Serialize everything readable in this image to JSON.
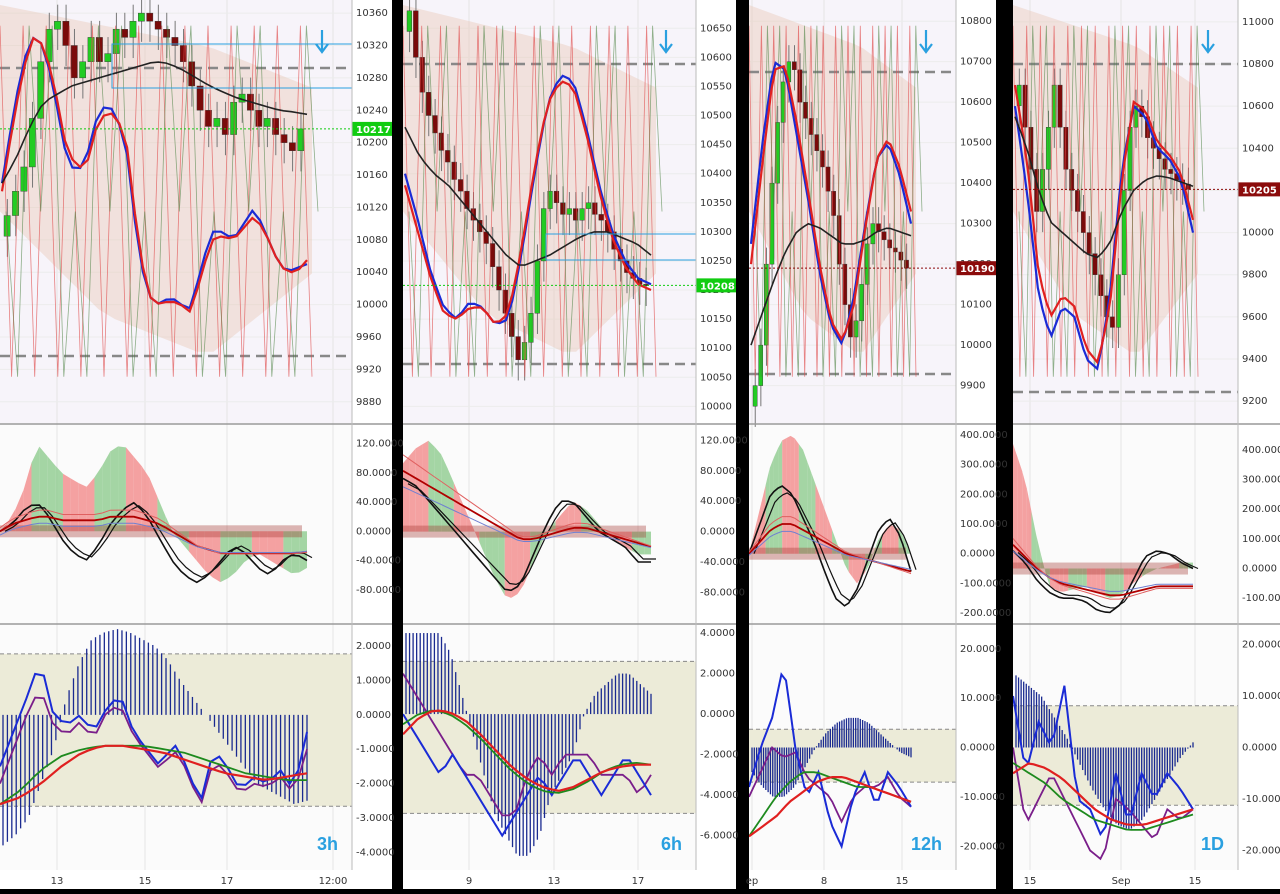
{
  "chart_data": [
    {
      "type": "candlestick",
      "timeframe": "3h",
      "price_axis_ticks": [
        10360,
        10320,
        10280,
        10240,
        10200,
        10160,
        10120,
        10080,
        10040,
        10000,
        9960,
        9920,
        9880
      ],
      "price_ylim": [
        9860,
        10370
      ],
      "last_price": "10217",
      "osc_axis_ticks": [
        "120.0000",
        "80.0000",
        "40.0000",
        "0.0000",
        "-40.0000",
        "-80.0000"
      ],
      "osc_ylim": [
        -120,
        140
      ],
      "macd_axis_ticks": [
        "2.0000",
        "1.0000",
        "0.0000",
        "-1.0000",
        "-2.0000",
        "-3.0000",
        "-4.0000"
      ],
      "macd_ylim": [
        -4.4,
        2.5
      ],
      "time_labels": [
        "13",
        "15",
        "17",
        "12:00"
      ],
      "closes": [
        10110,
        10140,
        10170,
        10230,
        10300,
        10340,
        10350,
        10320,
        10280,
        10300,
        10330,
        10300,
        10310,
        10340,
        10330,
        10350,
        10360,
        10350,
        10340,
        10330,
        10320,
        10300,
        10270,
        10240,
        10220,
        10230,
        10210,
        10250,
        10260,
        10240,
        10220,
        10230,
        10210,
        10200,
        10190,
        10217
      ],
      "series": [
        {
          "name": "",
          "color": "#1a2bd6",
          "values": [
            10150,
            10230,
            10300,
            10330,
            10320,
            10260,
            10190,
            10160,
            10180,
            10230,
            10250,
            10230,
            10180,
            10060,
            10010,
            10000,
            10010,
            10000,
            9995,
            10050,
            10090,
            10090,
            10080,
            10100,
            10120,
            10090,
            10060,
            10040,
            10045,
            10050
          ]
        },
        {
          "name": "",
          "color": "#e02020",
          "values": [
            10140,
            10220,
            10290,
            10330,
            10320,
            10270,
            10200,
            10170,
            10170,
            10220,
            10240,
            10230,
            10190,
            10070,
            10010,
            10000,
            10005,
            10000,
            9990,
            10040,
            10080,
            10085,
            10080,
            10095,
            10110,
            10090,
            10060,
            10040,
            10040,
            10055
          ]
        },
        {
          "name": "",
          "color": "#222222",
          "values": [
            10150,
            10180,
            10220,
            10250,
            10260,
            10270,
            10275,
            10280,
            10285,
            10290,
            10295,
            10300,
            10298,
            10290,
            10280,
            10270,
            10262,
            10255,
            10250,
            10245,
            10240,
            10238,
            10235
          ]
        }
      ]
    },
    {
      "type": "candlestick",
      "timeframe": "6h",
      "price_axis_ticks": [
        10650,
        10600,
        10550,
        10500,
        10450,
        10400,
        10350,
        10300,
        10250,
        10200,
        10150,
        10100,
        10050,
        10000
      ],
      "price_ylim": [
        9980,
        10690
      ],
      "last_price": "10208",
      "osc_axis_ticks": [
        "120.0000",
        "80.0000",
        "40.0000",
        "0.0000",
        "-40.0000",
        "-80.0000"
      ],
      "osc_ylim": [
        -115,
        135
      ],
      "macd_axis_ticks": [
        "4.0000",
        "2.0000",
        "0.0000",
        "-2.0000",
        "-4.0000",
        "-6.0000"
      ],
      "macd_ylim": [
        -7.5,
        4.2
      ],
      "time_labels": [
        "9",
        "13",
        "17"
      ],
      "closes": [
        10680,
        10600,
        10540,
        10500,
        10470,
        10440,
        10420,
        10390,
        10370,
        10340,
        10320,
        10300,
        10280,
        10240,
        10200,
        10160,
        10120,
        10080,
        10110,
        10160,
        10250,
        10340,
        10370,
        10350,
        10330,
        10340,
        10320,
        10340,
        10350,
        10330,
        10320,
        10300,
        10270,
        10250,
        10230,
        10220,
        10210,
        10208
      ],
      "series": [
        {
          "name": "",
          "color": "#1a2bd6",
          "values": [
            10400,
            10320,
            10230,
            10170,
            10150,
            10180,
            10170,
            10140,
            10150,
            10260,
            10400,
            10520,
            10570,
            10560,
            10480,
            10380,
            10300,
            10250,
            10220,
            10210
          ]
        },
        {
          "name": "",
          "color": "#e02020",
          "values": [
            10380,
            10300,
            10220,
            10160,
            10150,
            10170,
            10170,
            10140,
            10160,
            10270,
            10410,
            10520,
            10560,
            10550,
            10470,
            10370,
            10290,
            10240,
            10210,
            10200
          ]
        },
        {
          "name": "",
          "color": "#222222",
          "values": [
            10480,
            10430,
            10400,
            10380,
            10350,
            10320,
            10290,
            10260,
            10240,
            10250,
            10260,
            10275,
            10290,
            10300,
            10300,
            10290,
            10280,
            10260
          ]
        }
      ]
    },
    {
      "type": "candlestick",
      "timeframe": "12h",
      "price_axis_ticks": [
        10800,
        10700,
        10600,
        10500,
        10400,
        10300,
        10200,
        10100,
        10000,
        9900
      ],
      "price_ylim": [
        9820,
        10840
      ],
      "last_price": "10190",
      "osc_axis_ticks": [
        "400.0000",
        "300.0000",
        "200.0000",
        "100.0000",
        "0.0000",
        "-100.0000",
        "-200.0000"
      ],
      "osc_ylim": [
        -220,
        420
      ],
      "macd_axis_ticks": [
        "20.0000",
        "10.0000",
        "0.0000",
        "-10.0000",
        "-20.0000"
      ],
      "macd_ylim": [
        -24,
        24
      ],
      "time_labels": [
        "ep",
        "8",
        "15"
      ],
      "closes": [
        9900,
        10000,
        10200,
        10400,
        10550,
        10650,
        10700,
        10680,
        10600,
        10560,
        10520,
        10480,
        10440,
        10380,
        10320,
        10200,
        10100,
        10020,
        10060,
        10150,
        10250,
        10300,
        10280,
        10260,
        10240,
        10230,
        10210,
        10190
      ],
      "series": [
        {
          "name": "",
          "color": "#1a2bd6",
          "values": [
            10250,
            10500,
            10700,
            10680,
            10520,
            10360,
            10180,
            10050,
            10000,
            10120,
            10300,
            10460,
            10500,
            10420,
            10300
          ]
        },
        {
          "name": "",
          "color": "#e02020",
          "values": [
            10200,
            10450,
            10680,
            10690,
            10550,
            10380,
            10200,
            10060,
            10010,
            10100,
            10290,
            10460,
            10510,
            10440,
            10330
          ]
        },
        {
          "name": "",
          "color": "#222222",
          "values": [
            10000,
            10080,
            10160,
            10230,
            10280,
            10300,
            10290,
            10270,
            10250,
            10250,
            10260,
            10280,
            10290,
            10280,
            10270
          ]
        }
      ]
    },
    {
      "type": "candlestick",
      "timeframe": "1D",
      "price_axis_ticks": [
        11000,
        10800,
        10600,
        10400,
        10200,
        10000,
        9800,
        9600,
        9400,
        9200
      ],
      "price_ylim": [
        9120,
        11080
      ],
      "last_price": "10205",
      "osc_axis_ticks": [
        "400.0000",
        "300.0000",
        "200.0000",
        "100.0000",
        "0.0000",
        "-100.0000"
      ],
      "osc_ylim": [
        -170,
        470
      ],
      "macd_axis_ticks": [
        "20.0000",
        "10.0000",
        "0.0000",
        "-10.0000",
        "-20.0000"
      ],
      "macd_ylim": [
        -23,
        23
      ],
      "time_labels": [
        "15",
        "Sep",
        "15"
      ],
      "closes": [
        10700,
        10500,
        10300,
        10100,
        10300,
        10500,
        10700,
        10500,
        10300,
        10200,
        10100,
        10000,
        9900,
        9800,
        9700,
        9600,
        9550,
        9800,
        10200,
        10500,
        10600,
        10550,
        10450,
        10400,
        10350,
        10300,
        10280,
        10250,
        10230,
        10205
      ],
      "series": [
        {
          "name": "",
          "color": "#1a2bd6",
          "values": [
            10600,
            10200,
            9700,
            9500,
            9650,
            9600,
            9400,
            9350,
            9700,
            10300,
            10600,
            10550,
            10400,
            10350,
            10250,
            10000
          ]
        },
        {
          "name": "",
          "color": "#e02020",
          "values": [
            10700,
            10350,
            9800,
            9600,
            9700,
            9650,
            9450,
            9380,
            9650,
            10250,
            10620,
            10580,
            10430,
            10370,
            10280,
            10060
          ]
        },
        {
          "name": "",
          "color": "#222222",
          "values": [
            10550,
            10400,
            10200,
            10050,
            10000,
            9950,
            9900,
            9880,
            9950,
            10100,
            10200,
            10250,
            10270,
            10260,
            10240,
            10220
          ]
        }
      ]
    }
  ]
}
